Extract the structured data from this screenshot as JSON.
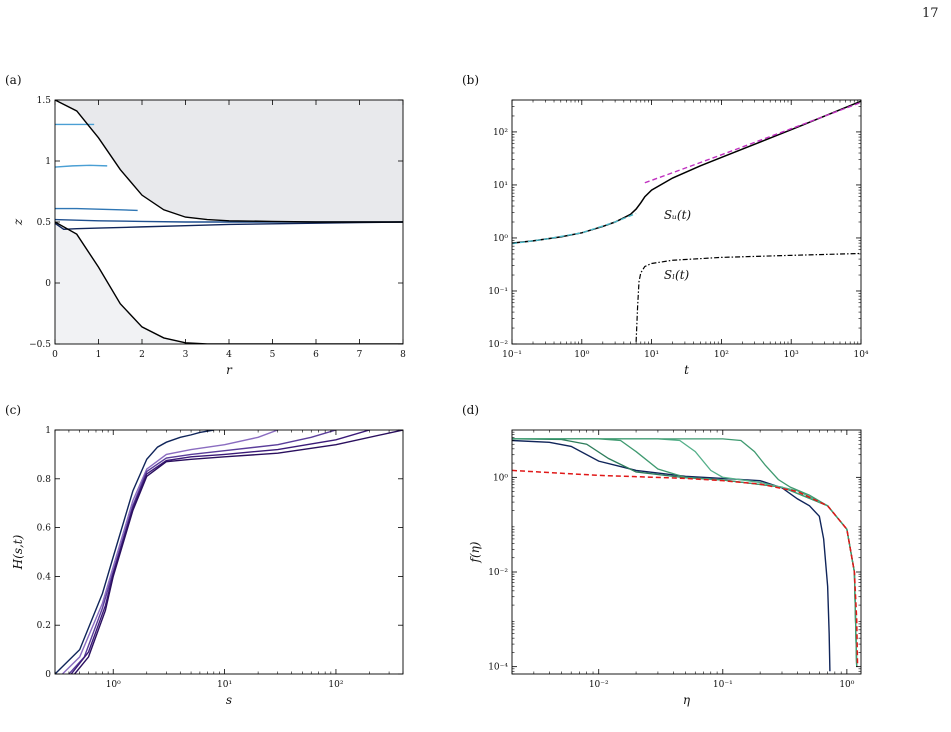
{
  "page": {
    "number": "17"
  },
  "colors": {
    "black": "#000000",
    "navy": "#10255a",
    "blue_dark": "#1f4f8f",
    "blue_mid": "#2f76b4",
    "blue_light": "#4a9fd4",
    "magenta": "#c030c0",
    "cyan": "#4ab8c8",
    "red": "#e01818",
    "purple1": "#3b1a78",
    "purple2": "#5a3d9a",
    "purple3": "#8a6cc0",
    "teal1": "#2e7d5b",
    "teal2": "#3f9a70",
    "teal3": "#55b08a",
    "fill_upper": "#e8e9ec",
    "fill_lower": "#f1f2f4"
  },
  "chart_data": [
    {
      "id": "a",
      "panel_label": "(a)",
      "type": "line",
      "xlabel": "r",
      "ylabel": "z",
      "xlim": [
        0,
        8
      ],
      "ylim": [
        -0.5,
        1.5
      ],
      "xticks": [
        0,
        1,
        2,
        3,
        4,
        5,
        6,
        7,
        8
      ],
      "yticks": [
        -0.5,
        0,
        0.5,
        1,
        1.5
      ],
      "ytick_labels": [
        "−0.5",
        "0",
        "0.5",
        "1",
        "1.5"
      ],
      "upper_boundary": {
        "x": [
          0,
          0.5,
          1,
          1.5,
          2,
          2.5,
          3,
          3.5,
          4,
          5,
          6,
          8
        ],
        "y": [
          1.5,
          1.41,
          1.19,
          0.93,
          0.72,
          0.6,
          0.54,
          0.52,
          0.51,
          0.505,
          0.5,
          0.5
        ]
      },
      "lower_boundary": {
        "x": [
          0,
          0.5,
          1,
          1.5,
          2,
          2.5,
          3,
          3.5,
          4,
          5,
          8
        ],
        "y": [
          0.5,
          0.4,
          0.13,
          -0.17,
          -0.36,
          -0.45,
          -0.49,
          -0.5,
          -0.5,
          -0.5,
          -0.5
        ]
      },
      "interfaces": [
        {
          "x": [
            0,
            0.9
          ],
          "y": [
            1.3,
            1.3
          ]
        },
        {
          "x": [
            0,
            0.4,
            0.8,
            1.2
          ],
          "y": [
            0.95,
            0.96,
            0.965,
            0.96
          ]
        },
        {
          "x": [
            0,
            0.5,
            1,
            1.5,
            1.9
          ],
          "y": [
            0.61,
            0.61,
            0.605,
            0.6,
            0.595
          ]
        },
        {
          "x": [
            0,
            1,
            2,
            3,
            4,
            5,
            6,
            7,
            8
          ],
          "y": [
            0.52,
            0.51,
            0.505,
            0.5,
            0.5,
            0.5,
            0.5,
            0.5,
            0.5
          ]
        },
        {
          "x": [
            0,
            0.2,
            0.5,
            1,
            2,
            3,
            4,
            5,
            6,
            7,
            8
          ],
          "y": [
            0.49,
            0.44,
            0.445,
            0.45,
            0.46,
            0.47,
            0.48,
            0.485,
            0.49,
            0.495,
            0.5
          ]
        }
      ]
    },
    {
      "id": "b",
      "panel_label": "(b)",
      "type": "line",
      "xlabel": "t",
      "xscale": "log",
      "yscale": "log",
      "xlim": [
        0.1,
        10000
      ],
      "ylim": [
        0.01,
        400
      ],
      "xticks": [
        0.1,
        1,
        10,
        100,
        1000,
        10000
      ],
      "xtick_labels": [
        "10⁻¹",
        "10⁰",
        "10¹",
        "10²",
        "10³",
        "10⁴"
      ],
      "yticks": [
        0.01,
        0.1,
        1,
        10,
        100
      ],
      "ytick_labels": [
        "10⁻²",
        "10⁻¹",
        "10⁰",
        "10¹",
        "10²"
      ],
      "annotations": [
        {
          "text": "Sᵤ(t)",
          "x": 15,
          "y": 2.3
        },
        {
          "text": "Sₗ(t)",
          "x": 15,
          "y": 0.17
        }
      ],
      "series": [
        {
          "key": "Su",
          "x": [
            0.1,
            0.2,
            0.5,
            1,
            2,
            3,
            4,
            5,
            6,
            7,
            8,
            10,
            20,
            50,
            100,
            1000,
            10000
          ],
          "y": [
            0.8,
            0.88,
            1.05,
            1.25,
            1.65,
            2.0,
            2.4,
            2.8,
            3.5,
            4.6,
            6.0,
            8.0,
            13.5,
            23,
            33,
            110,
            380
          ]
        },
        {
          "key": "Sl",
          "x": [
            6,
            6.3,
            6.6,
            7,
            8,
            10,
            20,
            100,
            1000,
            10000
          ],
          "y": [
            0.011,
            0.05,
            0.15,
            0.22,
            0.29,
            0.33,
            0.38,
            0.43,
            0.47,
            0.51
          ]
        },
        {
          "key": "fit_early",
          "x": [
            0.1,
            0.3,
            1,
            3,
            6
          ],
          "y": [
            0.78,
            0.95,
            1.25,
            2.0,
            2.9
          ]
        },
        {
          "key": "fit_late",
          "x": [
            8,
            20,
            100,
            1000,
            10000
          ],
          "y": [
            11,
            17,
            37,
            115,
            360
          ]
        }
      ]
    },
    {
      "id": "c",
      "panel_label": "(c)",
      "type": "line",
      "xlabel": "s",
      "ylabel": "H(s,t)",
      "xscale": "log",
      "xlim": [
        0.3,
        400
      ],
      "ylim": [
        0,
        1
      ],
      "xticks": [
        1,
        10,
        100
      ],
      "xtick_labels": [
        "10⁰",
        "10¹",
        "10²"
      ],
      "yticks": [
        0,
        0.2,
        0.4,
        0.6,
        0.8,
        1
      ],
      "ytick_labels": [
        "0",
        "0.2",
        "0.4",
        "0.6",
        "0.8",
        "1"
      ],
      "series": [
        {
          "x": [
            0.3,
            0.5,
            0.8,
            1,
            1.5,
            2,
            2.5,
            3,
            4,
            5,
            6,
            8
          ],
          "y": [
            0.0,
            0.1,
            0.33,
            0.48,
            0.75,
            0.88,
            0.93,
            0.95,
            0.97,
            0.98,
            0.99,
            1.0
          ]
        },
        {
          "x": [
            0.35,
            0.5,
            0.8,
            1,
            1.5,
            2,
            3,
            5,
            10,
            20,
            30
          ],
          "y": [
            0.0,
            0.07,
            0.29,
            0.44,
            0.71,
            0.84,
            0.9,
            0.92,
            0.94,
            0.97,
            1.0
          ]
        },
        {
          "x": [
            0.4,
            0.55,
            0.8,
            1,
            1.5,
            2,
            3,
            5,
            10,
            30,
            60,
            100
          ],
          "y": [
            0.0,
            0.07,
            0.27,
            0.42,
            0.69,
            0.83,
            0.885,
            0.9,
            0.915,
            0.94,
            0.97,
            1.0
          ]
        },
        {
          "x": [
            0.42,
            0.6,
            0.85,
            1,
            1.5,
            2,
            3,
            5,
            10,
            30,
            100,
            200
          ],
          "y": [
            0.0,
            0.09,
            0.28,
            0.41,
            0.68,
            0.82,
            0.875,
            0.89,
            0.9,
            0.92,
            0.96,
            1.0
          ]
        },
        {
          "x": [
            0.45,
            0.6,
            0.85,
            1,
            1.5,
            2,
            3,
            5,
            10,
            30,
            100,
            400
          ],
          "y": [
            0.0,
            0.07,
            0.26,
            0.4,
            0.67,
            0.81,
            0.87,
            0.88,
            0.89,
            0.905,
            0.94,
            1.0
          ]
        }
      ]
    },
    {
      "id": "d",
      "panel_label": "(d)",
      "type": "line",
      "xlabel": "η",
      "ylabel": "f(η)",
      "xscale": "log",
      "yscale": "log",
      "xlim": [
        0.002,
        1.3
      ],
      "ylim": [
        7e-05,
        10
      ],
      "xticks": [
        0.01,
        0.1,
        1
      ],
      "xtick_labels": [
        "10⁻²",
        "10⁻¹",
        "10⁰"
      ],
      "yticks": [
        0.0001,
        0.01,
        1
      ],
      "ytick_labels": [
        "10⁻⁴",
        "10⁻²",
        "10⁰"
      ],
      "series": [
        {
          "key": "similarity",
          "x": [
            0.002,
            0.01,
            0.05,
            0.1,
            0.2,
            0.4,
            0.7,
            1.0,
            1.15,
            1.2,
            1.22
          ],
          "y": [
            1.4,
            1.1,
            0.95,
            0.85,
            0.72,
            0.5,
            0.25,
            0.08,
            0.01,
            0.001,
            0.0001
          ]
        },
        {
          "key": "early",
          "x": [
            0.002,
            0.004,
            0.006,
            0.01,
            0.02,
            0.05,
            0.1,
            0.2,
            0.3,
            0.4,
            0.5,
            0.6,
            0.65,
            0.7,
            0.72,
            0.73
          ],
          "y": [
            6,
            5.5,
            4.5,
            2.2,
            1.4,
            1.05,
            0.95,
            0.85,
            0.6,
            0.35,
            0.25,
            0.15,
            0.05,
            0.005,
            0.0005,
            8e-05
          ]
        },
        {
          "key": "t2",
          "x": [
            0.002,
            0.005,
            0.008,
            0.012,
            0.02,
            0.05,
            0.1,
            0.3,
            0.7,
            1.0,
            1.15,
            1.2
          ],
          "y": [
            6.5,
            6.3,
            5,
            2.5,
            1.3,
            0.98,
            0.88,
            0.62,
            0.25,
            0.08,
            0.01,
            0.0001
          ]
        },
        {
          "key": "t3",
          "x": [
            0.002,
            0.01,
            0.015,
            0.02,
            0.03,
            0.05,
            0.1,
            0.3,
            0.7,
            1.0,
            1.15,
            1.2
          ],
          "y": [
            6.5,
            6.5,
            6.0,
            3.5,
            1.5,
            1.0,
            0.88,
            0.62,
            0.25,
            0.08,
            0.01,
            0.0001
          ]
        },
        {
          "key": "t4",
          "x": [
            0.002,
            0.03,
            0.045,
            0.06,
            0.08,
            0.1,
            0.2,
            0.4,
            0.7,
            1.0,
            1.15,
            1.2
          ],
          "y": [
            6.5,
            6.5,
            6.0,
            3.5,
            1.4,
            1.0,
            0.78,
            0.52,
            0.25,
            0.08,
            0.01,
            0.0001
          ]
        },
        {
          "key": "t5",
          "x": [
            0.002,
            0.1,
            0.14,
            0.18,
            0.22,
            0.28,
            0.35,
            0.5,
            0.7,
            1.0,
            1.15,
            1.2
          ],
          "y": [
            6.5,
            6.5,
            6.0,
            3.5,
            1.8,
            0.9,
            0.62,
            0.42,
            0.25,
            0.08,
            0.01,
            0.0001
          ]
        }
      ]
    }
  ]
}
